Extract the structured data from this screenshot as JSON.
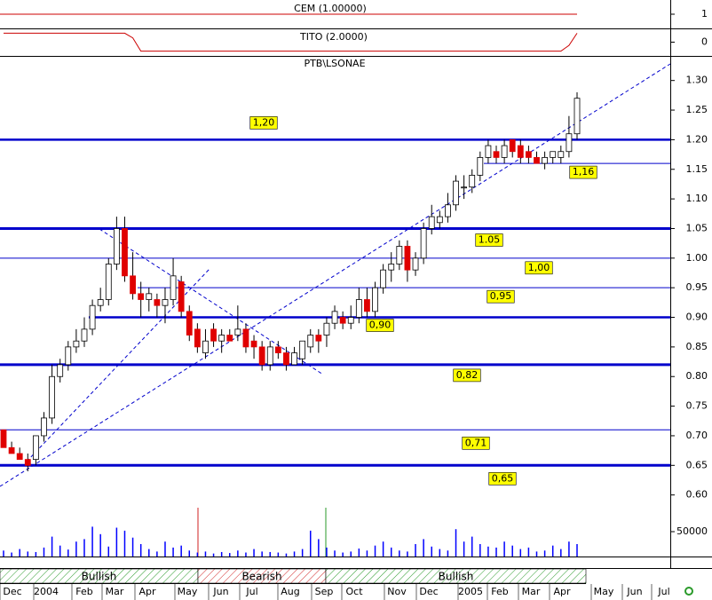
{
  "chart_data": {
    "type": "candlestick",
    "title": "PTB\\LSONAE",
    "candles": [
      [
        0.71,
        0.71,
        0.68,
        0.68
      ],
      [
        0.68,
        0.69,
        0.67,
        0.67
      ],
      [
        0.67,
        0.68,
        0.66,
        0.66
      ],
      [
        0.66,
        0.67,
        0.64,
        0.65
      ],
      [
        0.66,
        0.7,
        0.65,
        0.7
      ],
      [
        0.7,
        0.74,
        0.69,
        0.73
      ],
      [
        0.73,
        0.82,
        0.72,
        0.8
      ],
      [
        0.8,
        0.83,
        0.79,
        0.82
      ],
      [
        0.82,
        0.86,
        0.81,
        0.85
      ],
      [
        0.85,
        0.88,
        0.84,
        0.86
      ],
      [
        0.86,
        0.9,
        0.85,
        0.88
      ],
      [
        0.88,
        0.93,
        0.87,
        0.92
      ],
      [
        0.92,
        0.95,
        0.91,
        0.93
      ],
      [
        0.93,
        1.0,
        0.92,
        0.99
      ],
      [
        0.99,
        1.07,
        0.98,
        1.05
      ],
      [
        1.05,
        1.07,
        0.96,
        0.97
      ],
      [
        0.97,
        1.01,
        0.93,
        0.94
      ],
      [
        0.94,
        0.96,
        0.9,
        0.93
      ],
      [
        0.93,
        0.95,
        0.91,
        0.94
      ],
      [
        0.93,
        0.94,
        0.9,
        0.92
      ],
      [
        0.92,
        0.95,
        0.89,
        0.93
      ],
      [
        0.93,
        1.0,
        0.92,
        0.97
      ],
      [
        0.96,
        0.97,
        0.9,
        0.91
      ],
      [
        0.91,
        0.92,
        0.86,
        0.87
      ],
      [
        0.88,
        0.89,
        0.84,
        0.85
      ],
      [
        0.84,
        0.88,
        0.83,
        0.86
      ],
      [
        0.88,
        0.89,
        0.85,
        0.86
      ],
      [
        0.86,
        0.88,
        0.84,
        0.87
      ],
      [
        0.87,
        0.88,
        0.86,
        0.86
      ],
      [
        0.87,
        0.92,
        0.86,
        0.88
      ],
      [
        0.88,
        0.89,
        0.84,
        0.85
      ],
      [
        0.86,
        0.87,
        0.83,
        0.85
      ],
      [
        0.85,
        0.86,
        0.81,
        0.82
      ],
      [
        0.82,
        0.86,
        0.81,
        0.85
      ],
      [
        0.85,
        0.86,
        0.83,
        0.84
      ],
      [
        0.84,
        0.85,
        0.81,
        0.82
      ],
      [
        0.82,
        0.85,
        0.82,
        0.84
      ],
      [
        0.83,
        0.86,
        0.82,
        0.86
      ],
      [
        0.85,
        0.88,
        0.84,
        0.87
      ],
      [
        0.87,
        0.88,
        0.84,
        0.86
      ],
      [
        0.87,
        0.9,
        0.85,
        0.89
      ],
      [
        0.89,
        0.92,
        0.88,
        0.91
      ],
      [
        0.9,
        0.91,
        0.88,
        0.89
      ],
      [
        0.89,
        0.92,
        0.88,
        0.9
      ],
      [
        0.9,
        0.95,
        0.89,
        0.93
      ],
      [
        0.93,
        0.95,
        0.9,
        0.91
      ],
      [
        0.91,
        0.96,
        0.9,
        0.95
      ],
      [
        0.95,
        0.99,
        0.94,
        0.98
      ],
      [
        0.98,
        1.01,
        0.96,
        0.99
      ],
      [
        0.99,
        1.03,
        0.98,
        1.02
      ],
      [
        1.02,
        1.03,
        0.96,
        0.98
      ],
      [
        0.98,
        1.01,
        0.97,
        1.0
      ],
      [
        1.0,
        1.06,
        0.99,
        1.05
      ],
      [
        1.05,
        1.09,
        1.04,
        1.07
      ],
      [
        1.06,
        1.08,
        1.05,
        1.07
      ],
      [
        1.07,
        1.11,
        1.06,
        1.09
      ],
      [
        1.09,
        1.14,
        1.08,
        1.13
      ],
      [
        1.12,
        1.14,
        1.1,
        1.12
      ],
      [
        1.12,
        1.15,
        1.11,
        1.14
      ],
      [
        1.14,
        1.18,
        1.13,
        1.17
      ],
      [
        1.17,
        1.2,
        1.16,
        1.19
      ],
      [
        1.18,
        1.19,
        1.16,
        1.17
      ],
      [
        1.17,
        1.2,
        1.16,
        1.19
      ],
      [
        1.2,
        1.2,
        1.17,
        1.18
      ],
      [
        1.19,
        1.2,
        1.16,
        1.17
      ],
      [
        1.18,
        1.19,
        1.16,
        1.17
      ],
      [
        1.17,
        1.18,
        1.16,
        1.16
      ],
      [
        1.16,
        1.18,
        1.15,
        1.17
      ],
      [
        1.17,
        1.18,
        1.16,
        1.18
      ],
      [
        1.17,
        1.19,
        1.16,
        1.18
      ],
      [
        1.18,
        1.24,
        1.17,
        1.21
      ],
      [
        1.21,
        1.28,
        1.2,
        1.27
      ]
    ],
    "up_color": "#ffffff",
    "down_color": "#e00000",
    "ylim": [
      0.58,
      1.34
    ],
    "yticks": [
      {
        "value": 0.6,
        "label": "0.60"
      },
      {
        "value": 0.65,
        "label": "0.65"
      },
      {
        "value": 0.7,
        "label": "0.70"
      },
      {
        "value": 0.75,
        "label": "0.75"
      },
      {
        "value": 0.8,
        "label": "0.80"
      },
      {
        "value": 0.85,
        "label": "0.85"
      },
      {
        "value": 0.9,
        "label": "0.90"
      },
      {
        "value": 0.95,
        "label": "0.95"
      },
      {
        "value": 1.0,
        "label": "1.00"
      },
      {
        "value": 1.05,
        "label": "1.05"
      },
      {
        "value": 1.1,
        "label": "1.10"
      },
      {
        "value": 1.15,
        "label": "1.15"
      },
      {
        "value": 1.2,
        "label": "1.20"
      },
      {
        "value": 1.25,
        "label": "1.25"
      },
      {
        "value": 1.3,
        "label": "1.30"
      }
    ],
    "levels": [
      {
        "value": 1.2,
        "label": "1,20"
      },
      {
        "value": 1.16,
        "label": "1,16"
      },
      {
        "value": 1.05,
        "label": "1.05"
      },
      {
        "value": 1.0,
        "label": "1,00"
      },
      {
        "value": 0.95,
        "label": "0,95"
      },
      {
        "value": 0.9,
        "label": "0,90"
      },
      {
        "value": 0.82,
        "label": "0,82"
      },
      {
        "value": 0.71,
        "label": "0,71"
      },
      {
        "value": 0.65,
        "label": "0,65"
      }
    ],
    "level_color": "#0000cc",
    "x_labels": [
      "Dec",
      "2004",
      "Feb",
      "Mar",
      "Apr",
      "May",
      "Jun",
      "Jul",
      "Aug",
      "Sep",
      "Oct",
      "Nov",
      "Dec",
      "2005",
      "Feb",
      "Mar",
      "Apr",
      "May",
      "Jun",
      "Jul"
    ],
    "volume": {
      "color": "#0000ff",
      "ylim": [
        0,
        100000
      ],
      "yticks": [
        50000
      ],
      "values": [
        12000,
        8000,
        15000,
        10000,
        9000,
        18000,
        40000,
        22000,
        14000,
        30000,
        35000,
        60000,
        45000,
        20000,
        58000,
        52000,
        38000,
        25000,
        15000,
        10000,
        30000,
        18000,
        22000,
        12000,
        8000,
        10000,
        6000,
        9000,
        7000,
        12000,
        8000,
        15000,
        10000,
        9000,
        8000,
        6000,
        10000,
        15000,
        52000,
        35000,
        18000,
        12000,
        8000,
        10000,
        16000,
        12000,
        22000,
        30000,
        18000,
        12000,
        10000,
        25000,
        35000,
        20000,
        15000,
        12000,
        55000,
        30000,
        40000,
        25000,
        20000,
        18000,
        30000,
        22000,
        15000,
        18000,
        10000,
        12000,
        22000,
        15000,
        30000,
        25000
      ]
    },
    "cem": {
      "title": "CEM (1.00000)",
      "value": 1,
      "ylim": [
        0,
        2
      ],
      "yticks": [
        1
      ],
      "color": "#cc0000"
    },
    "tito": {
      "title": "TITO (2.0000)",
      "ylim": [
        -1.3,
        1.3
      ],
      "yticks": [
        0
      ],
      "color": "#cc0000",
      "values": [
        0.85,
        0.85,
        0.85,
        0.85,
        0.85,
        0.85,
        0.85,
        0.85,
        0.85,
        0.85,
        0.85,
        0.85,
        0.85,
        0.85,
        0.85,
        0.85,
        0.4,
        -0.85,
        -0.85,
        -0.85,
        -0.85,
        -0.85,
        -0.85,
        -0.85,
        -0.85,
        -0.85,
        -0.85,
        -0.85,
        -0.85,
        -0.85,
        -0.85,
        -0.85,
        -0.85,
        -0.85,
        -0.85,
        -0.85,
        -0.85,
        -0.85,
        -0.85,
        -0.85,
        -0.85,
        -0.85,
        -0.85,
        -0.85,
        -0.85,
        -0.85,
        -0.85,
        -0.85,
        -0.85,
        -0.85,
        -0.85,
        -0.85,
        -0.85,
        -0.85,
        -0.85,
        -0.85,
        -0.85,
        -0.85,
        -0.85,
        -0.85,
        -0.85,
        -0.85,
        -0.85,
        -0.85,
        -0.85,
        -0.85,
        -0.85,
        -0.85,
        -0.85,
        -0.85,
        -0.3,
        0.85
      ]
    },
    "signals": [
      "Bullish",
      "Bearish",
      "Bullish"
    ]
  }
}
